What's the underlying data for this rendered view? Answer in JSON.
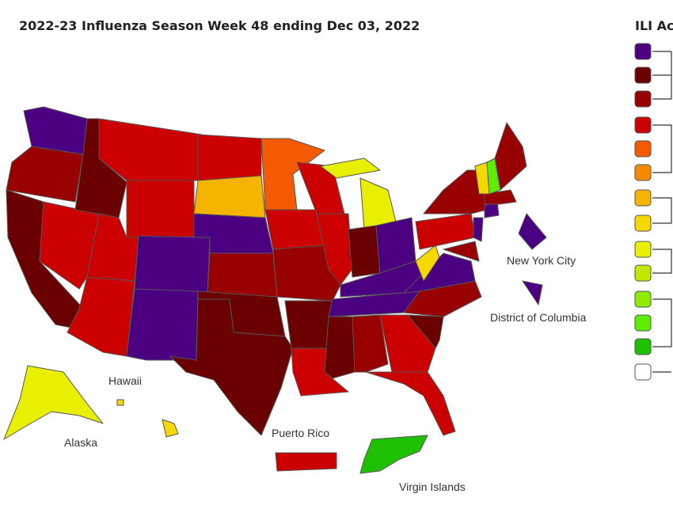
{
  "title": "2022-23 Influenza Season Week 48 ending Dec 03, 2022",
  "legend_title": "ILI Ac",
  "legend_colors": [
    "#4b0082",
    "#6b0000",
    "#990000",
    "#cc0000",
    "#f55a00",
    "#f58a00",
    "#f5b400",
    "#f5d800",
    "#e8f000",
    "#c0e800",
    "#90ea00",
    "#5ced00",
    "#1ec000",
    "#ffffff"
  ],
  "region_colors": [
    "#4b0082",
    "#990000",
    "#6b0000",
    "#cc0000",
    "#6b0000",
    "#cc0000",
    "#cc0000",
    "#cc0000",
    "#cc0000",
    "#4b0082",
    "#4b0082",
    "#cc0000",
    "#f5b400",
    "#4b0082",
    "#990000",
    "#6b0000",
    "#6b0000",
    "#f55a00",
    "#cc0000",
    "#990000",
    "#6b0000",
    "#cc0000",
    "#cc0000",
    "#cc0000",
    "#e8f000",
    "#e8f000",
    "#6b0000",
    "#4b0082",
    "#4b0082",
    "#4b0082",
    "#6b0000",
    "#990000",
    "#cc0000",
    "#cc0000",
    "#6b0000",
    "#990000",
    "#4b0082",
    "#f5d800",
    "#cc0000",
    "#990000",
    "#4b0082",
    "#990000",
    "#4b0082",
    "#990000",
    "#f5d800",
    "#5ced00",
    "#990000",
    "#4b0082",
    "#4b0082",
    "#e8f000",
    "#f5d800",
    "#f5d800",
    "#cc0000",
    "#1ec000"
  ],
  "labels": {
    "nyc": "New York City",
    "dc": "District of Columbia",
    "hawaii": "Hawaii",
    "alaska": "Alaska",
    "puerto_rico": "Puerto Rico",
    "virgin_islands": "Virgin Islands"
  }
}
